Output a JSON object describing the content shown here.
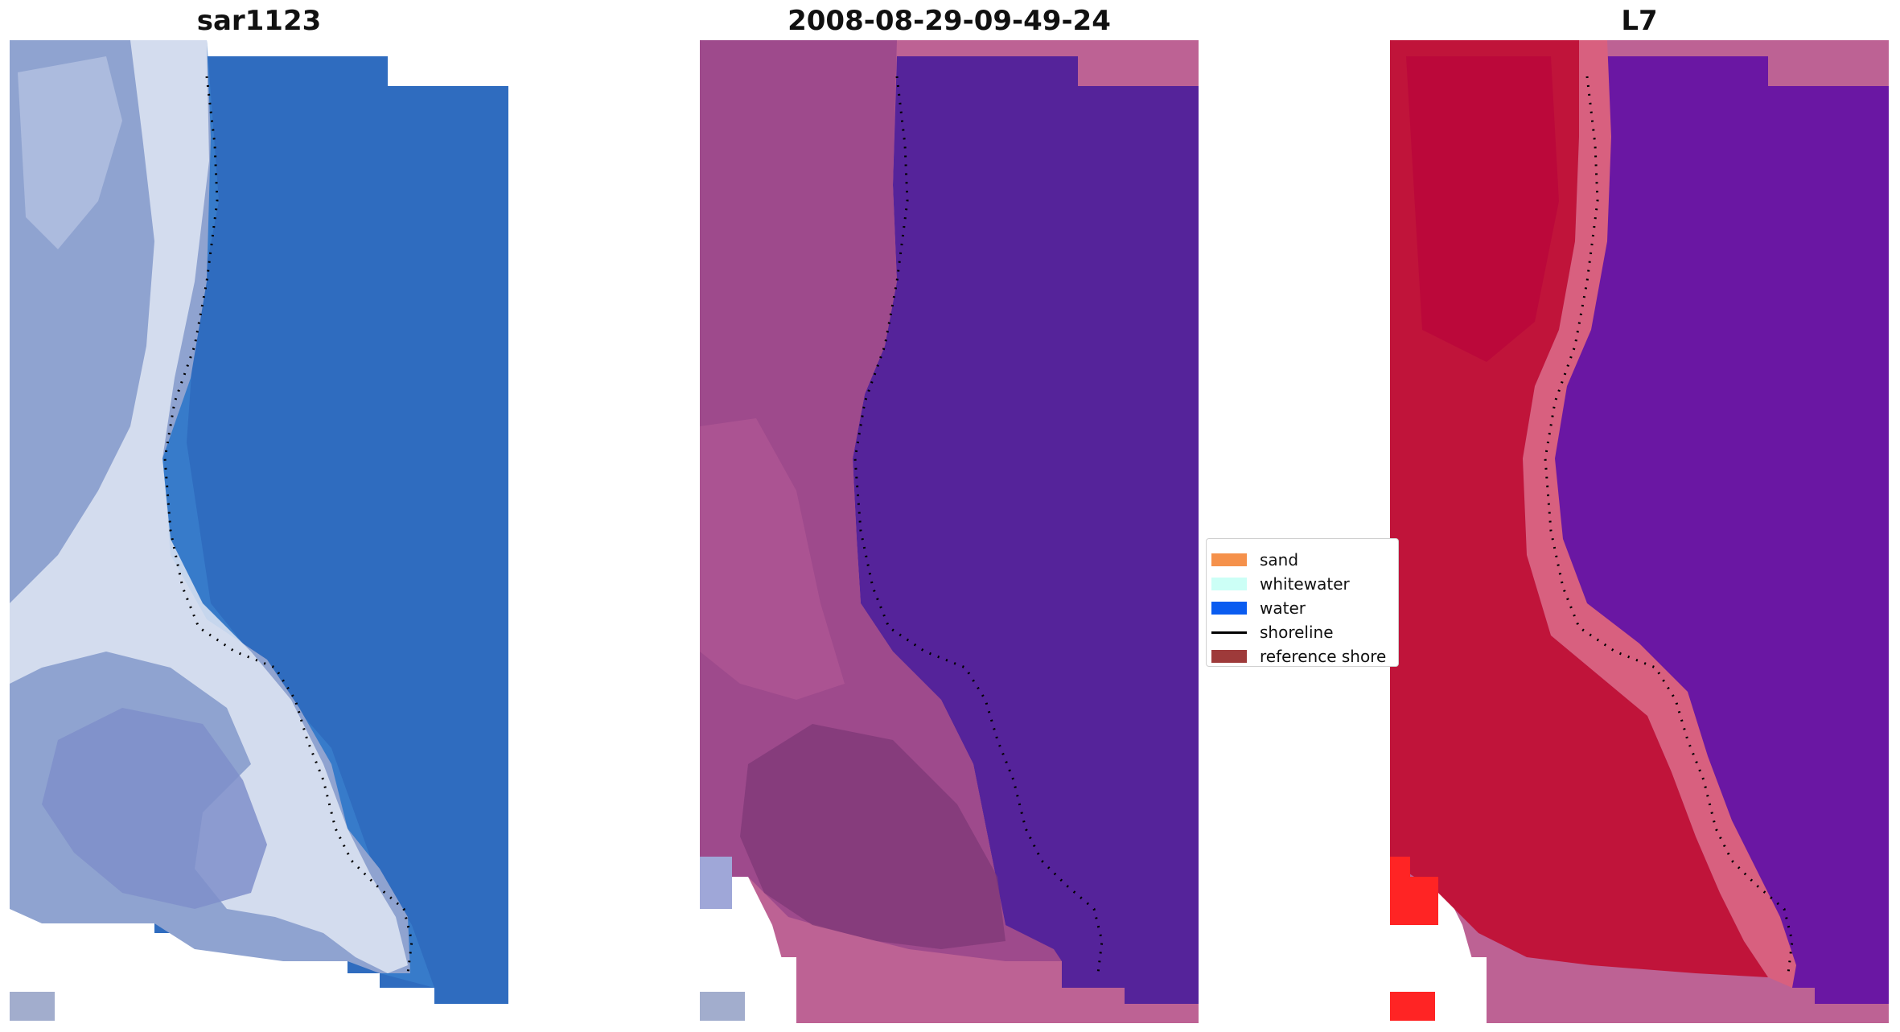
{
  "panels": [
    {
      "id": "rgb",
      "title": "sar1123"
    },
    {
      "id": "classified",
      "title": "2008-08-29-09-49-24"
    },
    {
      "id": "index",
      "title": "L7"
    }
  ],
  "legend": {
    "items": [
      {
        "label": "sand",
        "color": "#f5914b",
        "kind": "patch"
      },
      {
        "label": "whitewater",
        "color": "#ccfff6",
        "kind": "patch"
      },
      {
        "label": "water",
        "color": "#0a5cf0",
        "kind": "patch"
      },
      {
        "label": "shoreline",
        "color": "#000000",
        "kind": "line"
      },
      {
        "label": "reference shore",
        "color": "#9e3a3a",
        "kind": "patch"
      }
    ]
  },
  "colors": {
    "rgb_land": "#8fa3d0",
    "rgb_surf": "#dfe6f3",
    "rgb_water": "#2f6cbf",
    "class_land": "#9e4a8c",
    "class_water": "#55239a",
    "class_nodata": "#bd6294",
    "index_land": "#c0143a",
    "index_surf": "#d8607f",
    "index_water": "#6a17a3",
    "index_edge": "#ff2424",
    "shoreline": "#000000"
  }
}
